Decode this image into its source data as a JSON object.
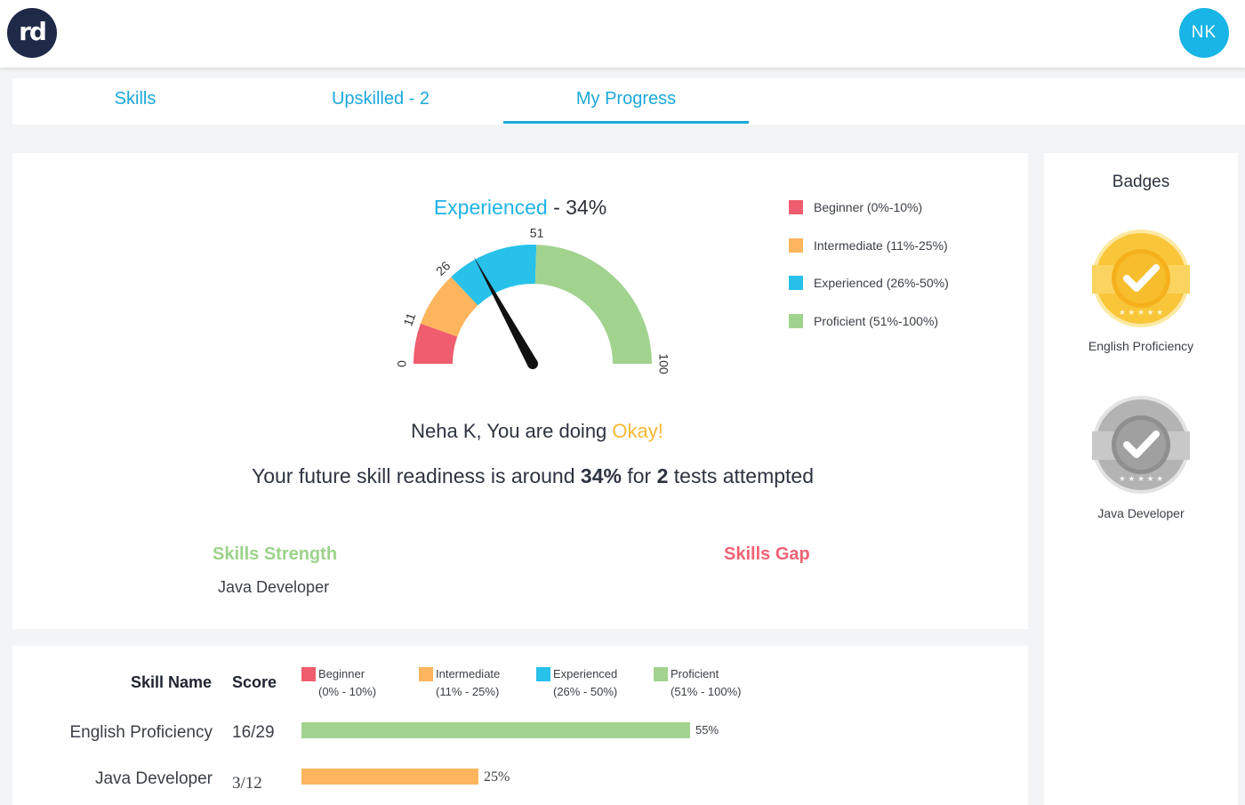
{
  "header": {
    "logo_text": "rd",
    "avatar_initials": "NK"
  },
  "tabs": [
    {
      "label": "Skills",
      "active": false
    },
    {
      "label": "Upskilled - 2",
      "active": false
    },
    {
      "label": "My Progress",
      "active": true
    }
  ],
  "gauge": {
    "level_label": "Experienced",
    "value_text": "- 34%",
    "value": 34,
    "ticks": [
      "0",
      "11",
      "26",
      "51",
      "100"
    ],
    "colors": {
      "beginner": "#f05d6e",
      "intermediate": "#fdb55e",
      "experienced": "#27c1ea",
      "proficient": "#a1d38f",
      "needle": "#111111"
    }
  },
  "legend": [
    {
      "label": "Beginner (0%-10%)",
      "color": "#f05d6e"
    },
    {
      "label": "Intermediate (11%-25%)",
      "color": "#fdb55e"
    },
    {
      "label": "Experienced (26%-50%)",
      "color": "#27c1ea"
    },
    {
      "label": "Proficient (51%-100%)",
      "color": "#a1d38f"
    }
  ],
  "message": {
    "greeting": "Neha K, You are doing ",
    "rating": "Okay!",
    "readiness_pre": "Your future skill readiness is around ",
    "readiness_pct": "34%",
    "readiness_mid": " for ",
    "tests_count": "2",
    "readiness_post": " tests attempted"
  },
  "skills_strength": {
    "title": "Skills Strength",
    "items": [
      "Java Developer"
    ]
  },
  "skills_gap": {
    "title": "Skills Gap",
    "items": []
  },
  "badges": {
    "title": "Badges",
    "items": [
      {
        "label": "English Proficiency",
        "color": "gold-icon"
      },
      {
        "label": "Java Developer",
        "color": "silver-icon"
      }
    ]
  },
  "table": {
    "headers": {
      "name": "Skill Name",
      "score": "Score"
    },
    "legend": [
      {
        "label": "Beginner",
        "range": "(0% - 10%)",
        "color": "#f05d6e"
      },
      {
        "label": "Intermediate",
        "range": "(11% - 25%)",
        "color": "#fdb55e"
      },
      {
        "label": "Experienced",
        "range": "(26% - 50%)",
        "color": "#27c1ea"
      },
      {
        "label": "Proficient",
        "range": "(51% - 100%)",
        "color": "#a1d38f"
      }
    ],
    "rows": [
      {
        "name": "English Proficiency",
        "score": "16/29",
        "percent": 55,
        "percent_label": "55%",
        "color": "#a1d38f"
      },
      {
        "name": "Java Developer",
        "score": "3/12",
        "percent": 25,
        "percent_label": "25%",
        "color": "#fdb55e"
      }
    ]
  }
}
